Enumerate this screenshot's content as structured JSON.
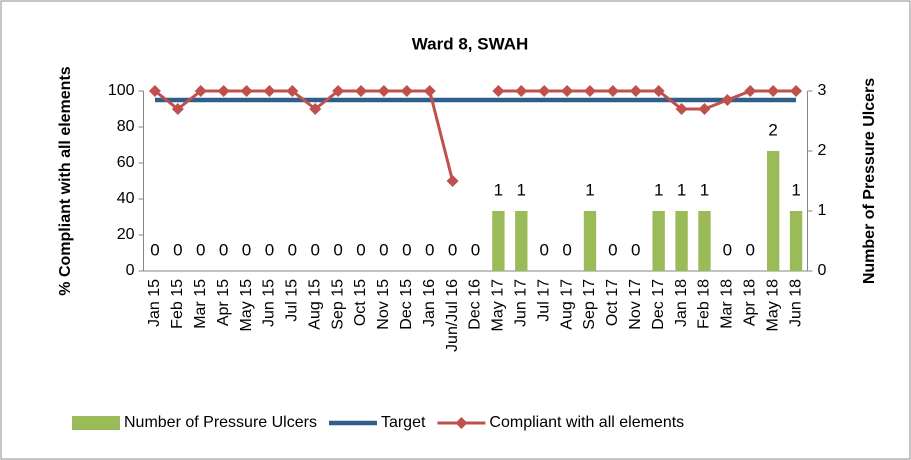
{
  "chart_data": {
    "type": "combo",
    "title": "Ward 8, SWAH",
    "y_label": "% Compliant with all elements",
    "y2_label": "Number of Pressure Ulcers",
    "categories": [
      "Jan 15",
      "Feb 15",
      "Mar 15",
      "Apr 15",
      "May 15",
      "Jun 15",
      "Jul 15",
      "Aug 15",
      "Sep 15",
      "Oct 15",
      "Nov 15",
      "Dec 15",
      "Jan 16",
      "Jun/Jul 16",
      "Dec 16",
      "May 17",
      "Jun 17",
      "Jul 17",
      "Aug 17",
      "Sep 17",
      "Oct 17",
      "Nov 17",
      "Dec 17",
      "Jan 18",
      "Feb 18",
      "Mar 18",
      "Apr 18",
      "May 18",
      "Jun 18"
    ],
    "series": [
      {
        "name": "Number of Pressure Ulcers",
        "type": "bar",
        "axis": "y2",
        "color": "#9bbb59",
        "values": [
          0,
          0,
          0,
          0,
          0,
          0,
          0,
          0,
          0,
          0,
          0,
          0,
          0,
          0,
          0,
          1,
          1,
          0,
          0,
          1,
          0,
          0,
          1,
          1,
          1,
          0,
          0,
          2,
          1
        ]
      },
      {
        "name": "Target",
        "type": "line",
        "color": "#2e5f8a",
        "values": [
          95,
          95,
          95,
          95,
          95,
          95,
          95,
          95,
          95,
          95,
          95,
          95,
          95,
          95,
          95,
          95,
          95,
          95,
          95,
          95,
          95,
          95,
          95,
          95,
          95,
          95,
          95,
          95,
          95
        ]
      },
      {
        "name": "Compliant with all elements",
        "type": "line",
        "markers": true,
        "color": "#c0504d",
        "values": [
          100,
          90,
          100,
          100,
          100,
          100,
          100,
          90,
          100,
          100,
          100,
          100,
          100,
          50,
          null,
          100,
          100,
          100,
          100,
          100,
          100,
          100,
          100,
          90,
          90,
          95,
          100,
          100,
          100
        ]
      }
    ],
    "ylim": [
      0,
      100
    ],
    "yticks": [
      0,
      20,
      40,
      60,
      80,
      100
    ],
    "y2lim": [
      0,
      3
    ],
    "y2ticks": [
      0,
      1,
      2,
      3
    ],
    "legend": "bottom"
  }
}
